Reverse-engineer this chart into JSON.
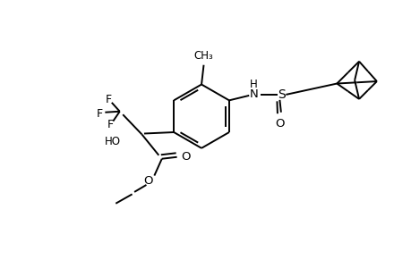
{
  "figsize": [
    4.6,
    3.0
  ],
  "dpi": 100,
  "bg_color": "#ffffff",
  "line_color": "#000000",
  "line_width": 1.4,
  "font_size": 8.5,
  "xlim": [
    0,
    9.2
  ],
  "ylim": [
    0,
    6.0
  ]
}
